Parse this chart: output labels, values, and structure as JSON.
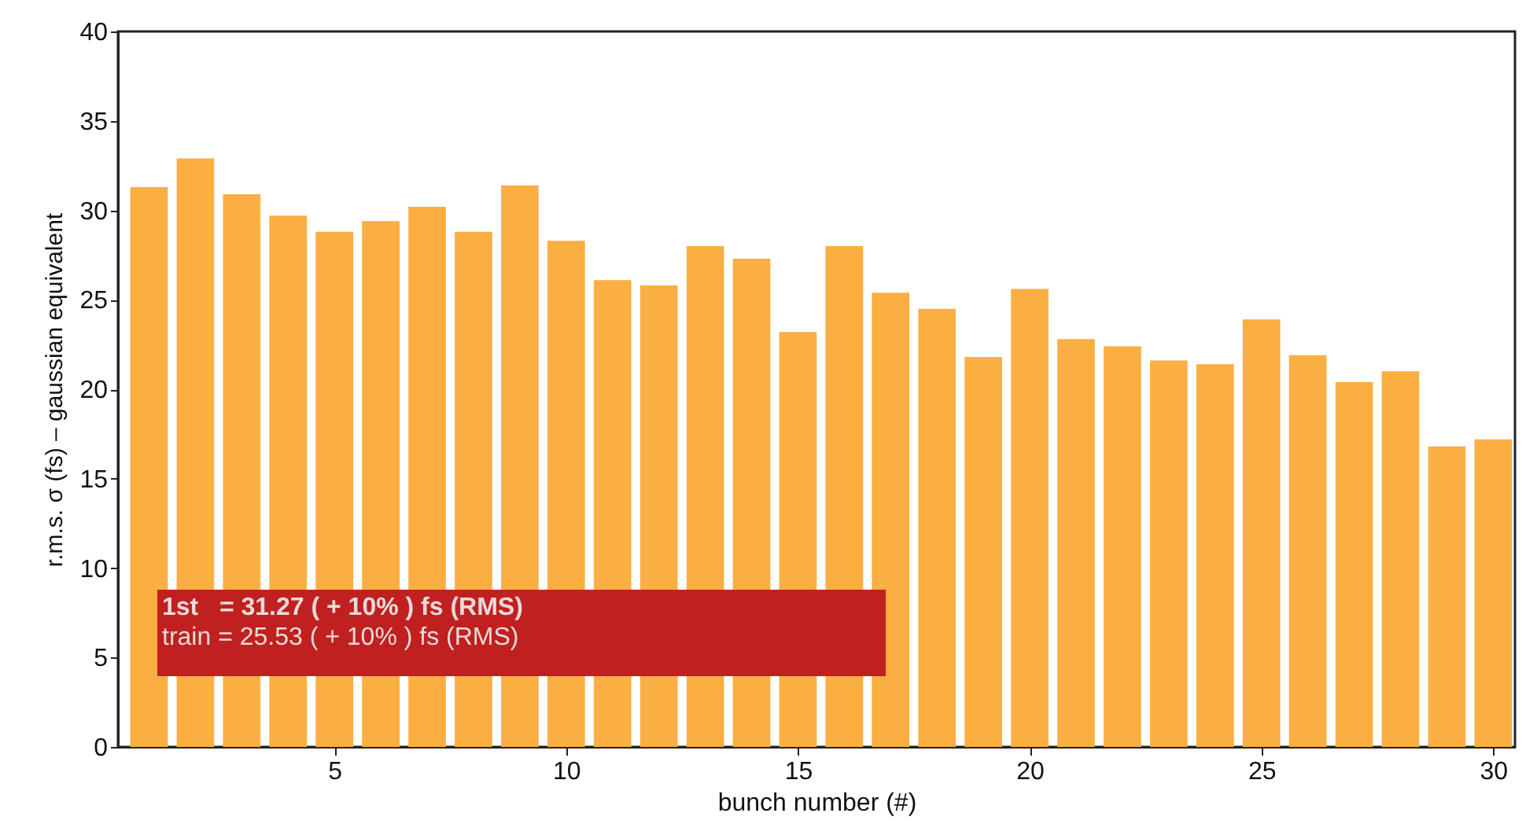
{
  "chart_data": {
    "type": "bar",
    "xlabel": "bunch number (#)",
    "ylabel": "r.m.s. σ (fs) – gaussian equivalent",
    "x": [
      1,
      2,
      3,
      4,
      5,
      6,
      7,
      8,
      9,
      10,
      11,
      12,
      13,
      14,
      15,
      16,
      17,
      18,
      19,
      20,
      21,
      22,
      23,
      24,
      25,
      26,
      27,
      28,
      29,
      30
    ],
    "values": [
      31.3,
      32.9,
      30.9,
      29.7,
      28.8,
      29.4,
      30.2,
      28.8,
      31.4,
      28.3,
      26.1,
      25.8,
      28.0,
      27.3,
      23.2,
      28.0,
      25.4,
      24.5,
      21.8,
      25.6,
      22.8,
      22.4,
      21.6,
      21.4,
      23.9,
      21.9,
      20.4,
      21.0,
      16.8,
      17.2
    ],
    "color": "#fbae42",
    "xlim": [
      0.5,
      30.3
    ],
    "xticks": [
      5,
      10,
      15,
      20,
      25,
      30
    ],
    "ylim": [
      0,
      40
    ],
    "yticks": [
      0,
      5,
      10,
      15,
      20,
      25,
      30,
      35,
      40
    ],
    "grid": false,
    "annotations": [
      "1st   = 31.27 ( + 10% ) fs (RMS)",
      "train = 25.53 ( + 10% ) fs (RMS)"
    ]
  }
}
